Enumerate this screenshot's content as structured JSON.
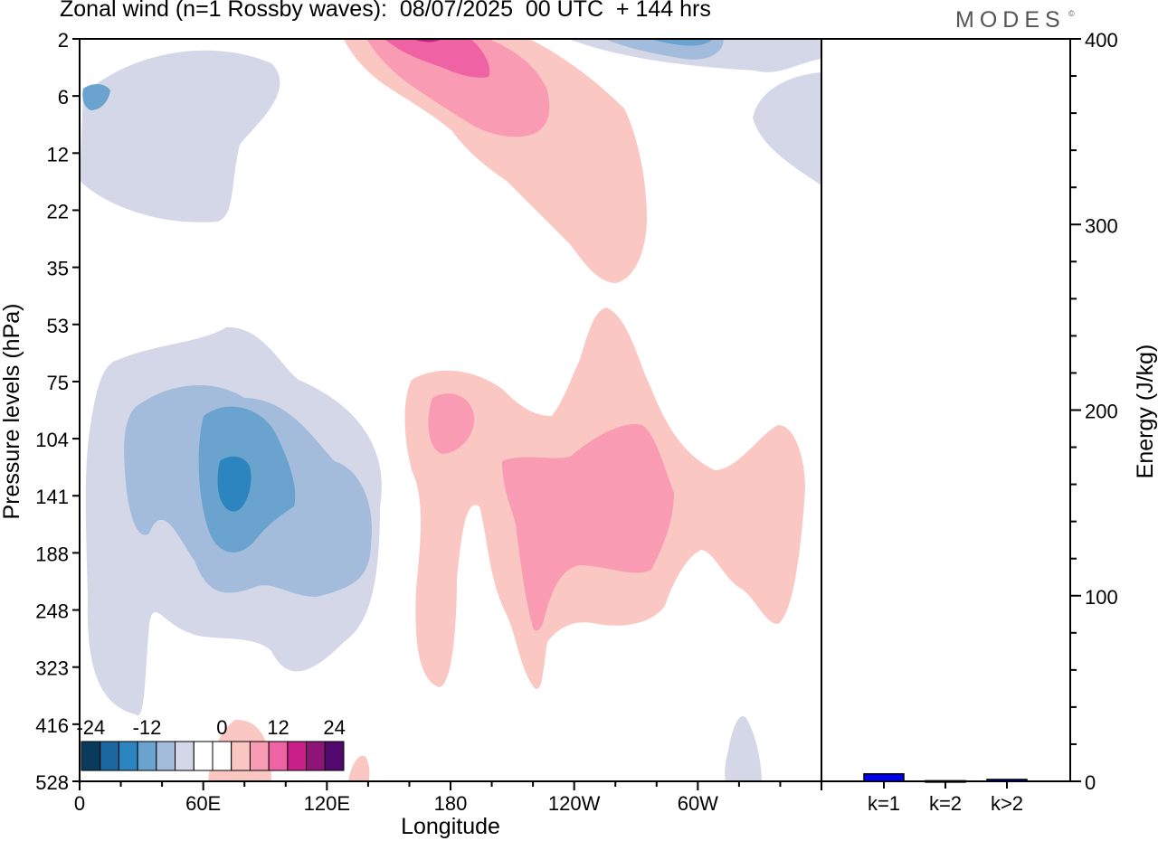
{
  "title": "Zonal wind (n=1 Rossby waves):  08/07/2025  00 UTC  + 144 hrs",
  "brand": "MODES",
  "brand_mark": "©",
  "colors": {
    "neg4": "#0a3b5c",
    "neg3": "#1b67a0",
    "neg2": "#2d85c0",
    "neg1": "#6aa3cd",
    "neg0": "#a4bcdb",
    "negS": "#d4d7e8",
    "zero": "#ffffff",
    "pos0": "#fbc7c3",
    "pos1": "#f99cb3",
    "pos2": "#ef62a4",
    "pos3": "#c81f88",
    "pos4": "#8f1477",
    "pos5": "#52096d",
    "bar": "#0000ee"
  },
  "chart_data": [
    {
      "type": "heatmap",
      "xlabel": "Longitude",
      "ylabel": "Pressure levels (hPa)",
      "x_ticks": [
        "0",
        "60E",
        "120E",
        "180",
        "120W",
        "60W"
      ],
      "y_ticks": [
        "2",
        "6",
        "12",
        "22",
        "35",
        "53",
        "75",
        "104",
        "141",
        "188",
        "248",
        "323",
        "416",
        "528"
      ],
      "colorbar_labels": [
        "-24",
        "-12",
        "0",
        "12",
        "24"
      ],
      "colorbar_levels": [
        -30,
        -24,
        -18,
        -12,
        -6,
        -3,
        3,
        6,
        12,
        18,
        24,
        30
      ],
      "features": [
        {
          "sign": "negative",
          "center_lon": 75,
          "center_hpa": 141,
          "peak": -18
        },
        {
          "sign": "negative",
          "center_lon": 10,
          "center_hpa": 6,
          "peak": -6
        },
        {
          "sign": "negative",
          "center_lon": 300,
          "center_hpa": 2,
          "peak": -12
        },
        {
          "sign": "positive",
          "center_lon": 190,
          "center_hpa": 2,
          "peak": 18
        },
        {
          "sign": "positive",
          "center_lon": 240,
          "center_hpa": 141,
          "peak": 12
        },
        {
          "sign": "positive",
          "center_lon": 175,
          "center_hpa": 104,
          "peak": 12
        }
      ]
    },
    {
      "type": "bar",
      "categories": [
        "k=1",
        "k=2",
        "k>2"
      ],
      "values": [
        4,
        0.3,
        1
      ],
      "ylabel": "Energy (J/kg)",
      "ylim": [
        0,
        400
      ],
      "y_ticks": [
        "0",
        "100",
        "200",
        "300",
        "400"
      ]
    }
  ]
}
